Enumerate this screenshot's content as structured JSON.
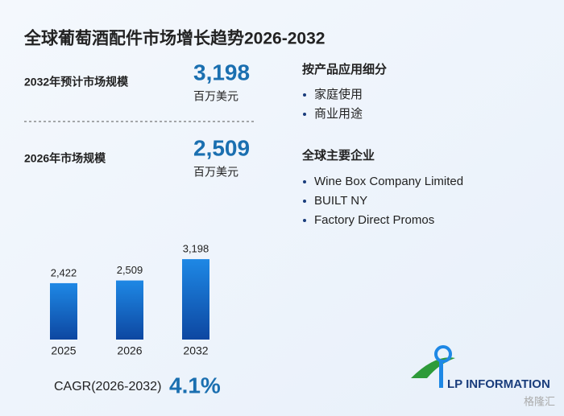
{
  "title": "全球葡萄酒配件市场增长趋势2026-2032",
  "stats": [
    {
      "label": "2032年预计市场规模",
      "value": "3,198",
      "unit": "百万美元"
    },
    {
      "label": "2026年市场规模",
      "value": "2,509",
      "unit": "百万美元"
    }
  ],
  "segments": {
    "title": "按产品应用细分",
    "items": [
      "家庭使用",
      "商业用途"
    ]
  },
  "companies": {
    "title": "全球主要企业",
    "items": [
      "Wine Box Company Limited",
      "BUILT NY",
      "Factory Direct Promos"
    ]
  },
  "cagr": {
    "label": "CAGR(2026-2032)",
    "value": "4.1%"
  },
  "logo": "LP INFORMATION",
  "watermark": "格隆汇",
  "chart_data": {
    "type": "bar",
    "categories": [
      "2025",
      "2026",
      "2032"
    ],
    "values": [
      2422,
      2509,
      3198
    ],
    "value_labels": [
      "2,422",
      "2,509",
      "3,198"
    ],
    "color": "#1e88e5",
    "ylim": [
      600,
      3200
    ]
  }
}
